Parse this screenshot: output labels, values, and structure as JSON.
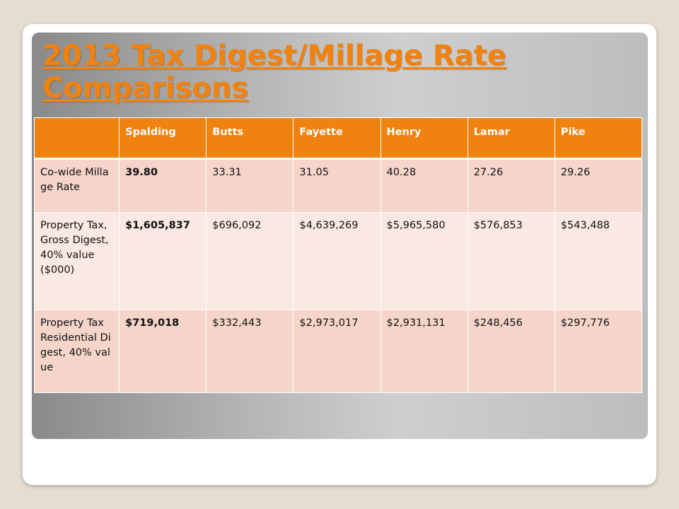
{
  "slide": {
    "title": "2013 Tax Digest/Millage Rate Comparisons"
  },
  "table": {
    "corner": "",
    "columns": [
      "Spalding",
      "Butts",
      "Fayette",
      "Henry",
      "Lamar",
      "Pike"
    ],
    "rows": [
      {
        "label": "Co-wide Millage Rate",
        "values": [
          "39.80",
          "33.31",
          "31.05",
          "40.28",
          "27.26",
          "29.26"
        ]
      },
      {
        "label": "Property Tax, Gross Digest, 40% value ($000)",
        "values": [
          "$1,605,837",
          "$696,092",
          "$4,639,269",
          "$5,965,580",
          "$576,853",
          "$543,488"
        ]
      },
      {
        "label": "Property Tax Residential Digest, 40% value",
        "values": [
          "$719,018",
          "$332,443",
          "$2,973,017",
          "$2,931,131",
          "$248,456",
          "$297,776"
        ]
      }
    ]
  },
  "colors": {
    "accent": "#f0820f",
    "row_dark": "#f5d4c9",
    "row_light": "#fae8e3",
    "background": "#e6ddd2"
  }
}
